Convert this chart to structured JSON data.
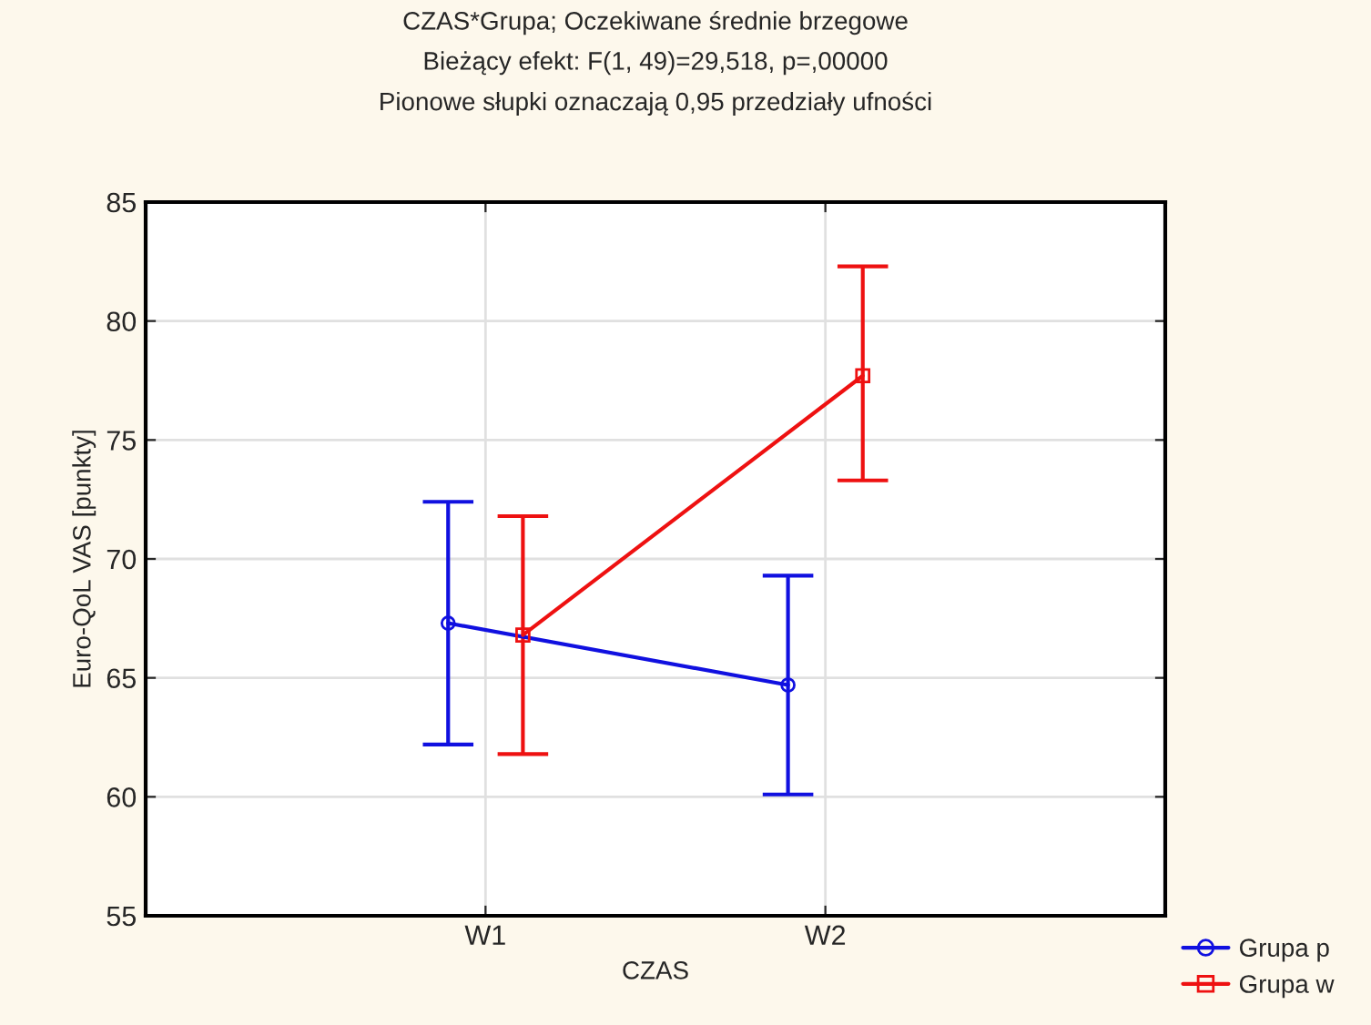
{
  "chart_data": {
    "type": "line",
    "title": "CZAS*Grupa; Oczekiwane średnie brzegowe",
    "subtitle": "Bieżący efekt: F(1, 49)=29,518, p=,00000\nPionowe słupki oznaczają 0,95 przedziały ufności",
    "xlabel": "CZAS",
    "ylabel": "Euro-QoL VAS [punkty]",
    "categories": [
      "W1",
      "W2"
    ],
    "series": [
      {
        "name": "Grupa p",
        "color": "#1010e0",
        "marker": "circle",
        "values": [
          67.3,
          64.7
        ],
        "errors": [
          [
            62.2,
            72.4
          ],
          [
            60.1,
            69.3
          ]
        ]
      },
      {
        "name": "Grupa w",
        "color": "#ee1111",
        "marker": "square",
        "values": [
          66.8,
          77.7
        ],
        "errors": [
          [
            61.8,
            71.8
          ],
          [
            73.3,
            82.3
          ]
        ]
      }
    ],
    "ylim": [
      55,
      85
    ],
    "yticks": [
      55,
      60,
      65,
      70,
      75,
      80,
      85
    ],
    "grid": true,
    "legend": "bottom right",
    "line_style": "solid"
  }
}
